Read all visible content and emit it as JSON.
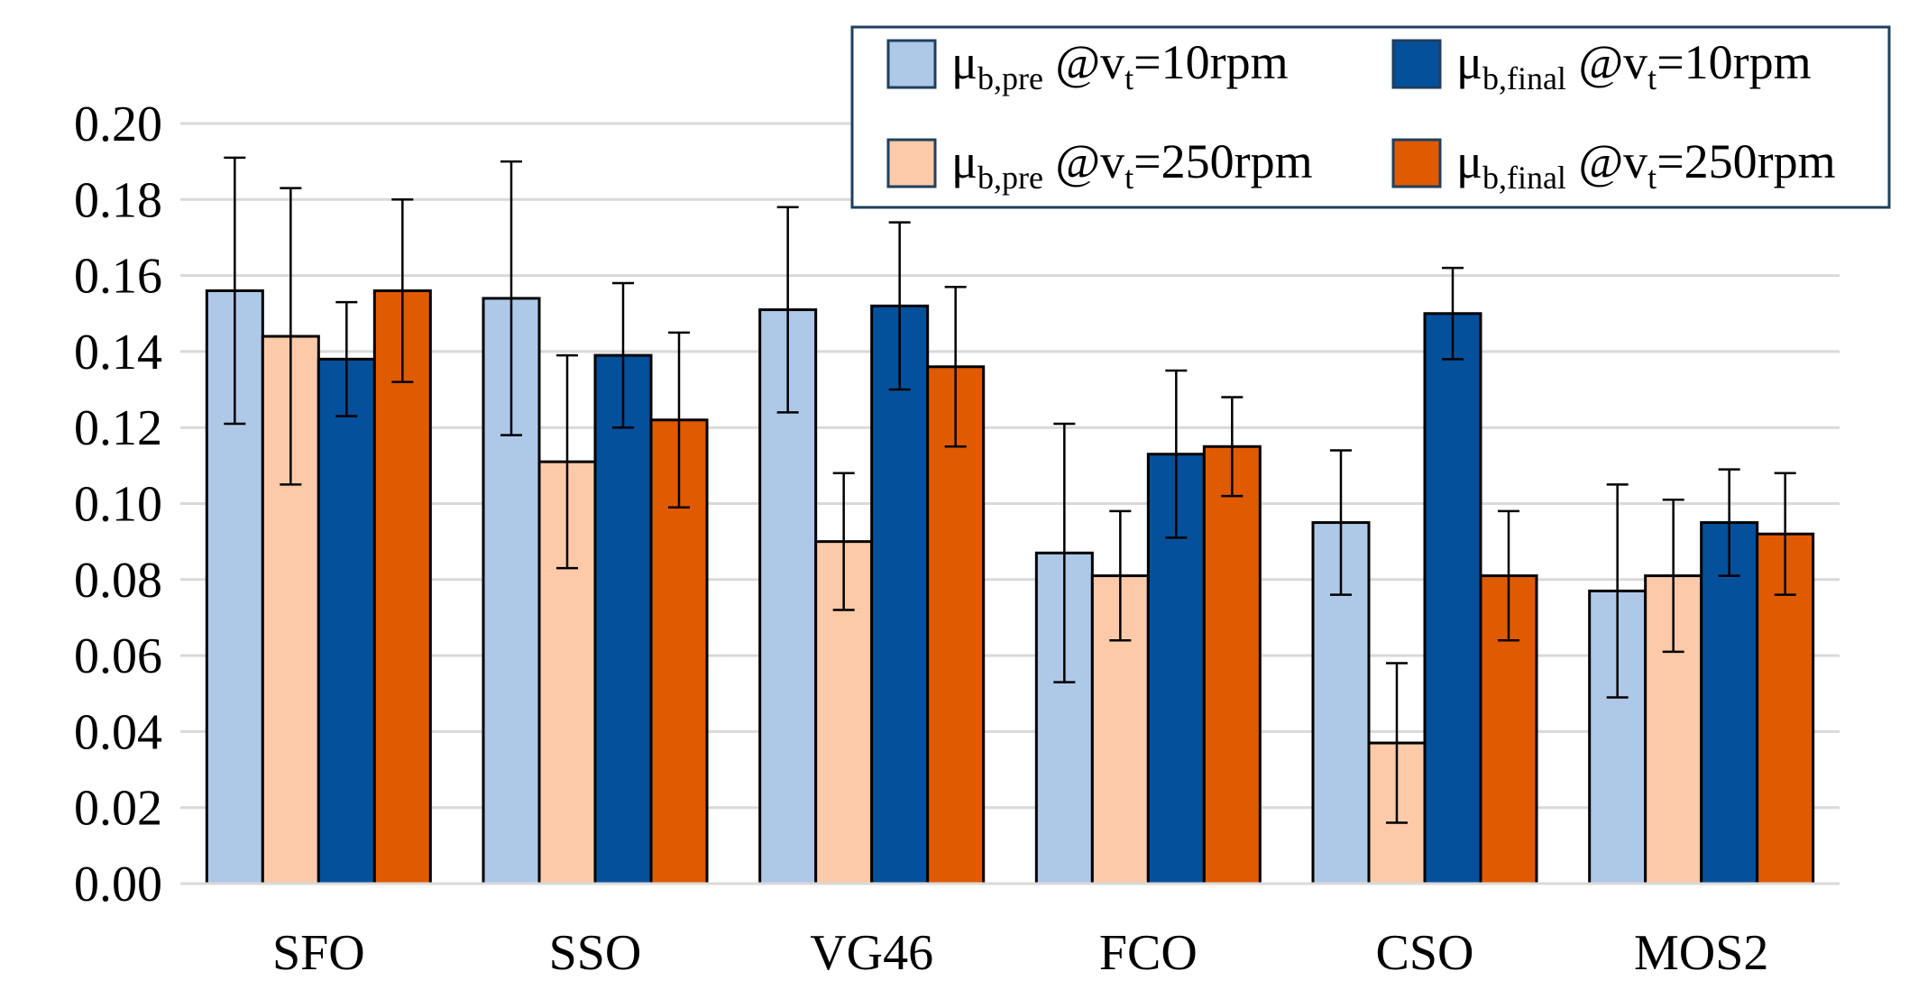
{
  "chart_data": {
    "type": "bar",
    "title": "",
    "xlabel": "",
    "ylabel": "",
    "ylim": [
      0,
      0.2
    ],
    "yticks": [
      "0.00",
      "0.02",
      "0.04",
      "0.06",
      "0.08",
      "0.10",
      "0.12",
      "0.14",
      "0.16",
      "0.18",
      "0.20"
    ],
    "grid": true,
    "legend_position": "top-right",
    "categories": [
      "SFO",
      "SSO",
      "VG46",
      "FCO",
      "CSO",
      "MOS2"
    ],
    "series": [
      {
        "name": "μb,pre @vt=10rpm",
        "label_parts": {
          "mu": "μ",
          "mu_sub": "b,pre",
          "at": "@v",
          "at_sub": "t",
          "rest": "=10rpm"
        },
        "color": "#aec8e8",
        "values": [
          0.156,
          0.154,
          0.151,
          0.087,
          0.095,
          0.077
        ],
        "error": [
          0.035,
          0.036,
          0.027,
          0.034,
          0.019,
          0.028
        ]
      },
      {
        "name": "μb,pre @vt=250rpm",
        "label_parts": {
          "mu": "μ",
          "mu_sub": "b,pre",
          "at": "@v",
          "at_sub": "t",
          "rest": "=250rpm"
        },
        "color": "#fccaa8",
        "values": [
          0.144,
          0.111,
          0.09,
          0.081,
          0.037,
          0.081
        ],
        "error": [
          0.039,
          0.028,
          0.018,
          0.017,
          0.021,
          0.02
        ]
      },
      {
        "name": "μb,final @vt=10rpm",
        "label_parts": {
          "mu": "μ",
          "mu_sub": "b,final",
          "at": "@v",
          "at_sub": "t",
          "rest": "=10rpm"
        },
        "color": "#04509a",
        "values": [
          0.138,
          0.139,
          0.152,
          0.113,
          0.15,
          0.095
        ],
        "error": [
          0.015,
          0.019,
          0.022,
          0.022,
          0.012,
          0.014
        ]
      },
      {
        "name": "μb,final @vt=250rpm",
        "label_parts": {
          "mu": "μ",
          "mu_sub": "b,final",
          "at": "@v",
          "at_sub": "t",
          "rest": "=250rpm"
        },
        "color": "#e05a00",
        "values": [
          0.156,
          0.122,
          0.136,
          0.115,
          0.081,
          0.092
        ],
        "error": [
          0.024,
          0.023,
          0.021,
          0.013,
          0.017,
          0.016
        ]
      }
    ],
    "legend_order": [
      0,
      2,
      1,
      3
    ]
  }
}
